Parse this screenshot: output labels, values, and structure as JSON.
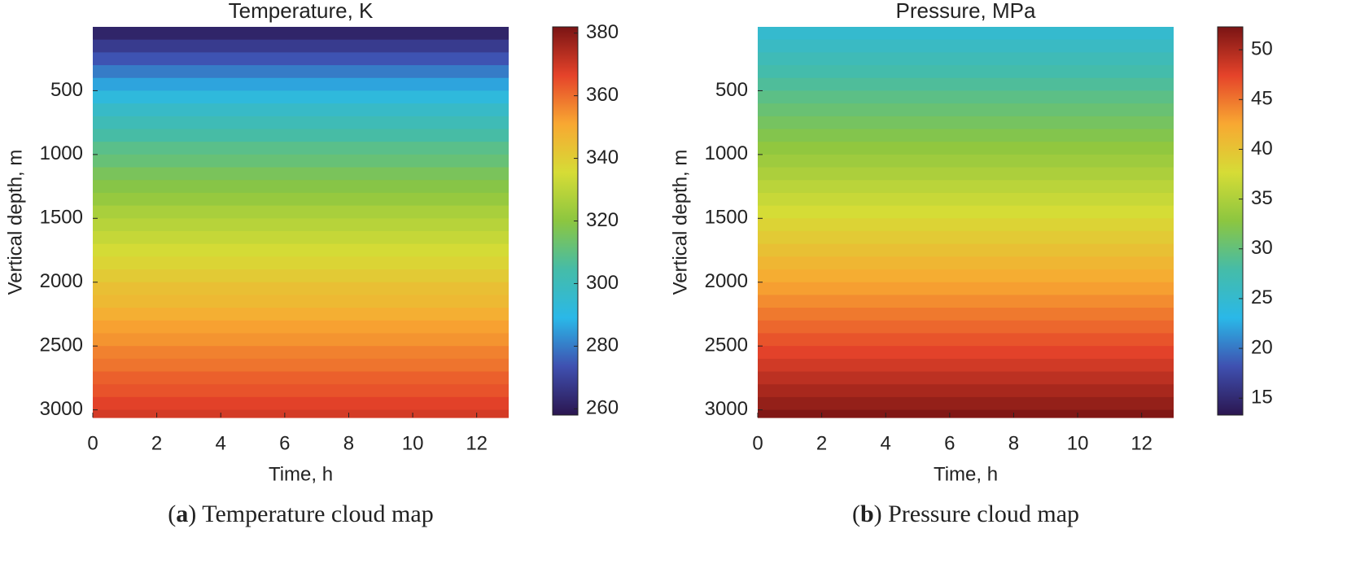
{
  "chart_data": [
    {
      "type": "heatmap",
      "title": "Temperature, K",
      "xlabel": "Time, h",
      "ylabel": "Vertical depth, m",
      "caption": [
        "(",
        "a",
        ") Temperature cloud map"
      ],
      "xlim": [
        0,
        13
      ],
      "xticks": [
        0,
        2,
        4,
        6,
        8,
        10,
        12
      ],
      "ylim": [
        0,
        3060
      ],
      "yticks": [
        500,
        1000,
        1500,
        2000,
        2500,
        3000
      ],
      "y_reversed": true,
      "y": [
        0,
        100,
        200,
        300,
        400,
        500,
        600,
        700,
        800,
        900,
        1000,
        1100,
        1200,
        1300,
        1400,
        1500,
        1600,
        1700,
        1800,
        1900,
        2000,
        2100,
        2200,
        2300,
        2400,
        2500,
        2600,
        2700,
        2800,
        2900,
        3000
      ],
      "values": [
        262,
        268,
        274,
        280,
        286,
        292,
        297,
        301,
        305,
        309,
        312,
        316,
        319,
        322,
        326,
        329,
        332,
        335,
        338,
        341,
        344,
        346,
        349,
        352,
        354,
        357,
        359,
        362,
        364,
        367,
        369
      ],
      "clim": [
        258,
        382
      ],
      "cticks": [
        260,
        280,
        300,
        320,
        340,
        360,
        380
      ],
      "colormap": [
        "#2b1650",
        "#3f50b0",
        "#2ab8e8",
        "#45bca8",
        "#8cc640",
        "#d6dc36",
        "#f8a832",
        "#e5432a",
        "#7a1414"
      ]
    },
    {
      "type": "heatmap",
      "title": "Pressure, MPa",
      "xlabel": "Time, h",
      "ylabel": "Vertical depth, m",
      "caption": [
        "(",
        "b",
        ") Pressure cloud map"
      ],
      "xlim": [
        0,
        13
      ],
      "xticks": [
        0,
        2,
        4,
        6,
        8,
        10,
        12
      ],
      "ylim": [
        0,
        3060
      ],
      "yticks": [
        500,
        1000,
        1500,
        2000,
        2500,
        3000
      ],
      "y_reversed": true,
      "y": [
        0,
        100,
        200,
        300,
        400,
        500,
        600,
        700,
        800,
        900,
        1000,
        1100,
        1200,
        1300,
        1400,
        1500,
        1600,
        1700,
        1800,
        1900,
        2000,
        2100,
        2200,
        2300,
        2400,
        2500,
        2600,
        2700,
        2800,
        2900,
        3000
      ],
      "values": [
        25,
        25.9,
        26.8,
        27.7,
        28.6,
        29.5,
        30.4,
        31.3,
        32.2,
        33.1,
        34,
        34.9,
        35.8,
        36.7,
        37.6,
        38.5,
        39.4,
        40.3,
        41.2,
        42.1,
        43,
        43.9,
        44.8,
        45.7,
        46.6,
        47.5,
        48.4,
        49.3,
        50.2,
        51.1,
        52
      ],
      "clim": [
        13.3,
        52.3
      ],
      "cticks": [
        15,
        20,
        25,
        30,
        35,
        40,
        45,
        50
      ],
      "colormap": [
        "#2b1650",
        "#3f50b0",
        "#2ab8e8",
        "#45bca8",
        "#8cc640",
        "#d6dc36",
        "#f8a832",
        "#e5432a",
        "#7a1414"
      ]
    }
  ]
}
